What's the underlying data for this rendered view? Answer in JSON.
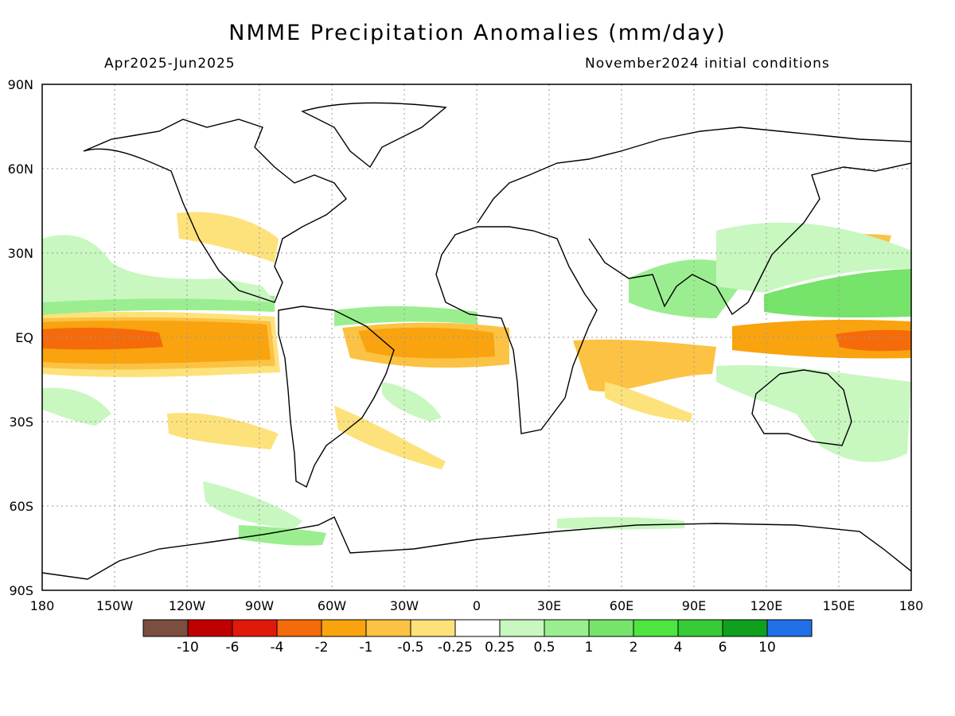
{
  "title": "NMME Precipitation Anomalies (mm/day)",
  "subtitle_left": "Apr2025-Jun2025",
  "subtitle_right": "November2024 initial conditions",
  "lat_labels": [
    "90N",
    "60N",
    "30N",
    "EQ",
    "30S",
    "60S",
    "90S"
  ],
  "lat_values": [
    90,
    60,
    30,
    0,
    -30,
    -60,
    -90
  ],
  "lon_labels": [
    "180",
    "150W",
    "120W",
    "90W",
    "60W",
    "30W",
    "0",
    "30E",
    "60E",
    "90E",
    "120E",
    "150E",
    "180"
  ],
  "lon_values": [
    -180,
    -150,
    -120,
    -90,
    -60,
    -30,
    0,
    30,
    60,
    90,
    120,
    150,
    180
  ],
  "colorbar": {
    "colors": [
      "#7a4f3f",
      "#c00000",
      "#e01a0a",
      "#f56a0a",
      "#f9a30e",
      "#fcc243",
      "#fde27b",
      "#ffffff",
      "#c8f7c0",
      "#9bee90",
      "#76e36a",
      "#4de640",
      "#36cc36",
      "#11a01e",
      "#2070e8"
    ],
    "labels": [
      "-10",
      "-6",
      "-4",
      "-2",
      "-1",
      "-0.5",
      "-0.25",
      "0.25",
      "0.5",
      "1",
      "2",
      "4",
      "6",
      "10"
    ]
  },
  "anomaly_colors": {
    "strong_dry": "#f56a0a",
    "dry": "#f9a30e",
    "mild_dry": "#fde27b",
    "light_wet": "#c8f7c0",
    "wet": "#9bee90",
    "wetter": "#76e36a"
  }
}
